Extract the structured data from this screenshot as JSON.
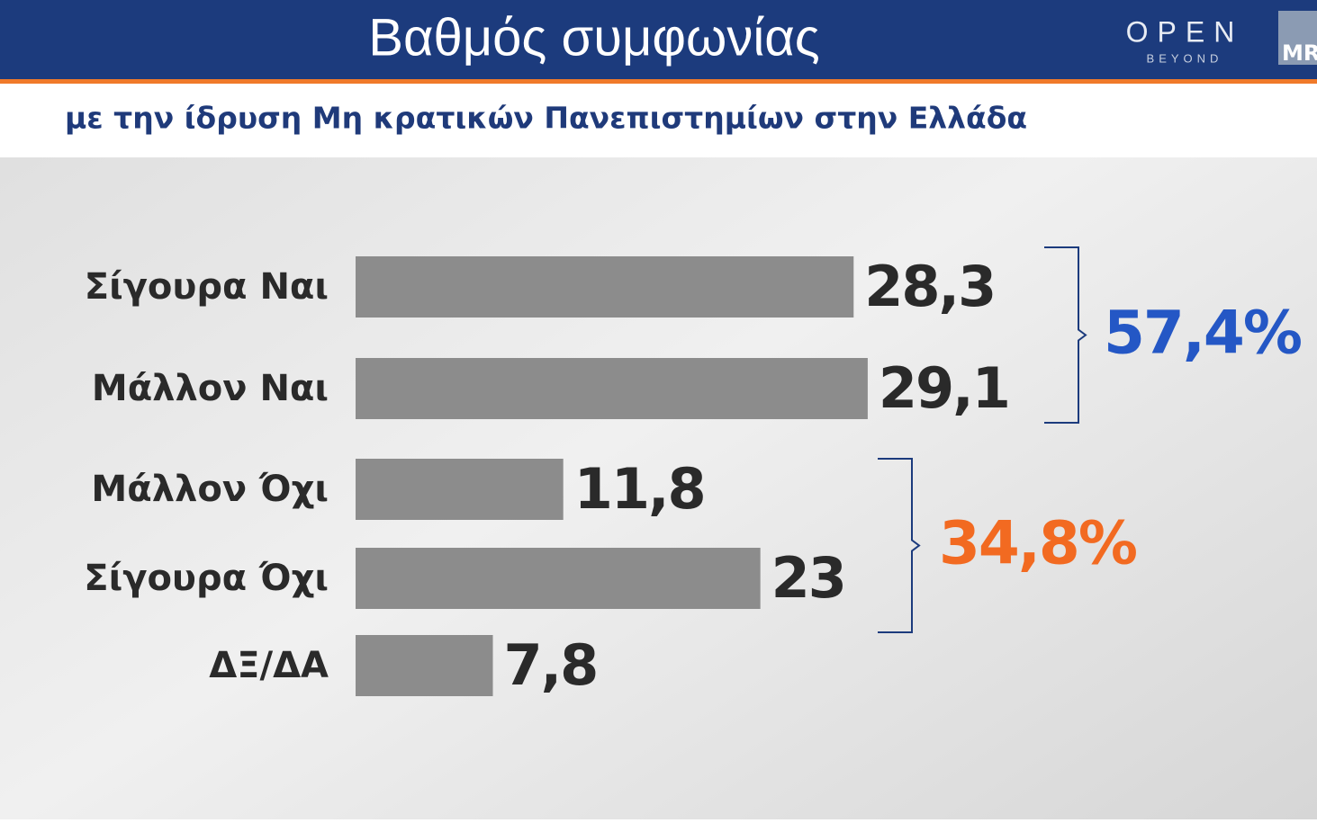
{
  "chart_data": {
    "type": "bar",
    "orientation": "horizontal",
    "title": "Βαθμός συμφωνίας",
    "subtitle": "με την ίδρυση Μη κρατικών Πανεπιστημίων στην Ελλάδα",
    "categories": [
      "Σίγουρα Ναι",
      "Μάλλον Ναι",
      "Μάλλον Όχι",
      "Σίγουρα Όχι",
      "ΔΞ/ΔΑ"
    ],
    "values": [
      28.3,
      29.1,
      11.8,
      23,
      7.8
    ],
    "value_labels": [
      "28,3",
      "29,1",
      "11,8",
      "23",
      "7,8"
    ],
    "color": "#8c8c8c",
    "groups": [
      {
        "label": "57,4%",
        "color": "#2457c5"
      },
      {
        "label": "34,8%",
        "color": "#f26a21"
      }
    ]
  },
  "logos": {
    "channel": "OPEN",
    "channel_sub": "BEYOND",
    "pollster": "MR"
  }
}
